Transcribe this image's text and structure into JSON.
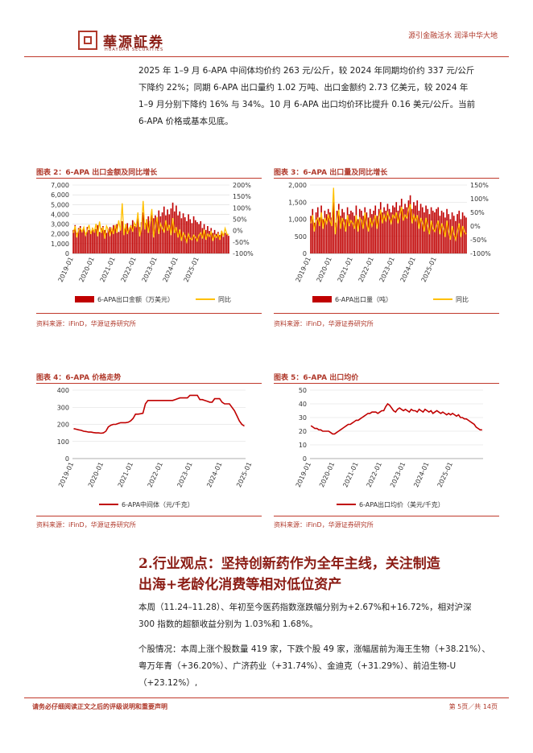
{
  "header": {
    "logo_text": "華源証券",
    "logo_sub": "HUAYUAN SECURITIES",
    "slogan": "源引金融活水 润泽中华大地"
  },
  "intro_paragraph": {
    "line1": "2025 年 1–9 月 6-APA 中间体均价约 263 元/公斤，较 2024 年同期均价约 337 元/公斤",
    "line2": "下降约 22%；同期 6-APA 出口量约 1.02 万吨、出口金额约 2.73 亿美元，较 2024 年",
    "line3": "1–9 月分别下降约 16% 与 34%。10 月 6-APA 出口均价环比提升 0.16 美元/公斤。当前",
    "line4": "6-APA 价格或基本见底。"
  },
  "figures": {
    "fig2": {
      "title": "图表 2：6-APA 出口金额及同比增长",
      "source": "资料来源：iFinD，华源证券研究所"
    },
    "fig3": {
      "title": "图表 3：6-APA 出口量及同比增长",
      "source": "资料来源：iFinD，华源证券研究所"
    },
    "fig4": {
      "title": "图表 4：6-APA 价格走势",
      "source": "资料来源：iFinD，华源证券研究所"
    },
    "fig5": {
      "title": "图表 5：6-APA 出口均价",
      "source": "资料来源：iFinD，华源证券研究所"
    }
  },
  "colors": {
    "accent": "#b0392b",
    "bar": "#c00000",
    "line": "#ffc000",
    "price_line": "#c00000"
  },
  "chart_data": [
    {
      "id": "fig2",
      "type": "bar",
      "x_ticks": [
        "2019-01",
        "2020-01",
        "2021-01",
        "2022-01",
        "2023-01",
        "2024-01",
        "2025-01"
      ],
      "y_ticks": [
        "7,000",
        "6,000",
        "5,000",
        "4,000",
        "3,000",
        "2,000",
        "1,000",
        "0"
      ],
      "y2_ticks": [
        "200%",
        "150%",
        "100%",
        "50%",
        "0%",
        "-50%",
        "-100%"
      ],
      "ylim": [
        0,
        7000
      ],
      "y2lim": [
        -100,
        200
      ],
      "series": [
        {
          "name": "6-APA出口金额（万美元）",
          "type": "bar",
          "values": [
            2400,
            2900,
            2100,
            2600,
            2800,
            2300,
            2500,
            2000,
            2700,
            2400,
            2200,
            2600,
            2300,
            2500,
            2900,
            2200,
            2600,
            2800,
            2400,
            2100,
            2500,
            2700,
            2300,
            2900,
            2600,
            3000,
            2200,
            2800,
            3300,
            2500,
            2700,
            3100,
            2600,
            2900,
            3400,
            2800,
            3000,
            3600,
            2700,
            3200,
            4200,
            3100,
            3500,
            3800,
            3300,
            4100,
            3600,
            3900,
            3400,
            4400,
            3800,
            4200,
            4800,
            3900,
            4500,
            4000,
            4600,
            5200,
            4300,
            4900,
            3900,
            4300,
            3600,
            4100,
            3700,
            3300,
            4000,
            3500,
            3100,
            3800,
            3400,
            3200,
            3000,
            3300,
            2600,
            3000,
            2400,
            2800,
            2300,
            2600,
            2100,
            2400,
            2000,
            2200,
            1900,
            2300,
            1700,
            2100,
            2000,
            1800
          ]
        },
        {
          "name": "同比",
          "type": "line",
          "values": [
            -10,
            20,
            -30,
            5,
            10,
            -5,
            15,
            -20,
            0,
            25,
            -15,
            10,
            -5,
            30,
            -25,
            40,
            -10,
            15,
            -35,
            20,
            5,
            -20,
            10,
            -15,
            25,
            -10,
            45,
            0,
            120,
            -20,
            30,
            -15,
            10,
            20,
            -5,
            35,
            15,
            80,
            -25,
            10,
            130,
            5,
            50,
            -10,
            40,
            95,
            -30,
            20,
            60,
            -15,
            30,
            10,
            -5,
            45,
            0,
            25,
            -20,
            55,
            -10,
            15,
            -30,
            5,
            -45,
            -10,
            -25,
            -50,
            -15,
            -35,
            -40,
            -20,
            -30,
            -45,
            -20,
            -10,
            -35,
            5,
            -40,
            -15,
            -25,
            -5,
            -45,
            -20,
            -30,
            -15,
            -40,
            0,
            -25,
            10,
            -15,
            -20
          ]
        }
      ]
    },
    {
      "id": "fig3",
      "type": "bar",
      "x_ticks": [
        "2019-01",
        "2020-01",
        "2021-01",
        "2022-01",
        "2023-01",
        "2024-01",
        "2025-01"
      ],
      "y_ticks": [
        "2,000",
        "1,500",
        "1,000",
        "500",
        "0"
      ],
      "y2_ticks": [
        "150%",
        "100%",
        "50%",
        "0%",
        "-50%",
        "-100%"
      ],
      "ylim": [
        0,
        2000
      ],
      "y2lim": [
        -100,
        150
      ],
      "series": [
        {
          "name": "6-APA出口量（吨）",
          "type": "bar",
          "values": [
            1100,
            1300,
            900,
            1200,
            1350,
            1050,
            1400,
            1000,
            1250,
            1150,
            1300,
            1200,
            1050,
            1500,
            900,
            1250,
            1450,
            1100,
            1300,
            1200,
            1000,
            1350,
            1150,
            1250,
            1200,
            1100,
            1400,
            1000,
            1300,
            1250,
            1100,
            1350,
            1200,
            1050,
            1300,
            1150,
            1250,
            1400,
            1100,
            1300,
            1500,
            1200,
            1350,
            1250,
            1450,
            1300,
            1200,
            1400,
            1350,
            1500,
            1250,
            1400,
            1600,
            1300,
            1450,
            1350,
            1550,
            1700,
            1300,
            1500,
            1400,
            1550,
            1250,
            1450,
            1350,
            1200,
            1400,
            1300,
            1150,
            1350,
            1250,
            1200,
            1300,
            1350,
            1100,
            1250,
            1200,
            1050,
            1300,
            1150,
            1000,
            1200,
            1100,
            950,
            1150,
            1250,
            1000,
            1200,
            1100,
            1050
          ]
        },
        {
          "name": "同比",
          "type": "line",
          "values": [
            10,
            40,
            -20,
            20,
            30,
            0,
            50,
            -10,
            30,
            10,
            40,
            20,
            0,
            140,
            -30,
            20,
            60,
            -10,
            30,
            10,
            -20,
            40,
            0,
            20,
            10,
            -10,
            40,
            -20,
            30,
            20,
            -10,
            50,
            10,
            -20,
            30,
            0,
            20,
            40,
            -10,
            30,
            60,
            10,
            40,
            20,
            50,
            30,
            10,
            40,
            30,
            50,
            10,
            40,
            70,
            20,
            40,
            30,
            60,
            80,
            10,
            40,
            20,
            40,
            -10,
            30,
            10,
            -20,
            30,
            0,
            -30,
            20,
            -10,
            -20,
            0,
            20,
            -30,
            10,
            -10,
            -40,
            20,
            -20,
            -50,
            0,
            -30,
            -50,
            -20,
            10,
            -40,
            0,
            -20,
            -30
          ]
        }
      ]
    },
    {
      "id": "fig4",
      "type": "line",
      "x_ticks": [
        "2019-01",
        "2020-01",
        "2021-01",
        "2022-01",
        "2023-01",
        "2024-01",
        "2025-01"
      ],
      "y_ticks": [
        "400",
        "300",
        "200",
        "100",
        "0"
      ],
      "ylim": [
        0,
        400
      ],
      "series": [
        {
          "name": "6-APA中间体（元/千克）",
          "values": [
            175,
            172,
            168,
            165,
            160,
            158,
            155,
            155,
            152,
            150,
            150,
            148,
            150,
            160,
            185,
            195,
            200,
            200,
            205,
            210,
            210,
            210,
            212,
            220,
            235,
            260,
            260,
            262,
            265,
            320,
            340,
            340,
            340,
            340,
            340,
            340,
            340,
            340,
            340,
            340,
            340,
            345,
            350,
            355,
            355,
            355,
            355,
            370,
            370,
            370,
            370,
            345,
            345,
            340,
            335,
            330,
            330,
            350,
            350,
            350,
            330,
            320,
            320,
            320,
            300,
            280,
            250,
            220,
            200,
            190
          ]
        }
      ]
    },
    {
      "id": "fig5",
      "type": "line",
      "x_ticks": [
        "2019-01",
        "2020-01",
        "2021-01",
        "2022-01",
        "2023-01",
        "2024-01",
        "2025-01"
      ],
      "y_ticks": [
        "50",
        "40",
        "30",
        "20",
        "10",
        "0"
      ],
      "ylim": [
        0,
        50
      ],
      "series": [
        {
          "name": "6-APA出口均价（美元/千克）",
          "values": [
            24,
            23,
            22,
            22,
            21,
            21,
            20,
            20,
            20,
            20,
            19,
            18,
            18,
            19,
            20,
            21,
            22,
            23,
            24,
            25,
            25,
            26,
            27,
            28,
            28,
            29,
            30,
            31,
            32,
            33,
            33,
            34,
            34,
            34,
            33,
            34,
            35,
            35,
            38,
            40,
            39,
            37,
            35,
            34,
            36,
            37,
            36,
            35,
            36,
            35,
            34,
            36,
            35,
            35,
            34,
            36,
            35,
            34,
            36,
            35,
            34,
            35,
            33,
            34,
            35,
            34,
            33,
            34,
            33,
            32,
            33,
            32,
            33,
            32,
            31,
            32,
            30,
            30,
            29,
            29,
            28,
            27,
            26,
            25,
            23,
            22,
            21,
            21
          ]
        }
      ]
    }
  ],
  "section": {
    "title_line1": "2.行业观点：坚持创新药作为全年主线，关注制造",
    "title_line2": "出海+老龄化消费等相对低位资产"
  },
  "body": {
    "p1_line1": "本周（11.24–11.28）、年初至今医药指数涨跌幅分别为+2.67%和+16.72%，相对沪深",
    "p1_line2": "300 指数的超额收益分别为 1.03%和 1.68%。",
    "p2_line1": "个股情况：本周上涨个股数量 419 家，下跌个股 49 家，涨幅居前为海王生物（+38.21%）、",
    "p2_line2": "粤万年青（+36.20%）、广济药业（+31.74%）、金迪克（+31.29%）、前沿生物-U（+23.12%）,"
  },
  "footer": {
    "note": "请务必仔细阅读正文之后的评级说明和重要声明",
    "page": "第 5页／共 14页"
  }
}
